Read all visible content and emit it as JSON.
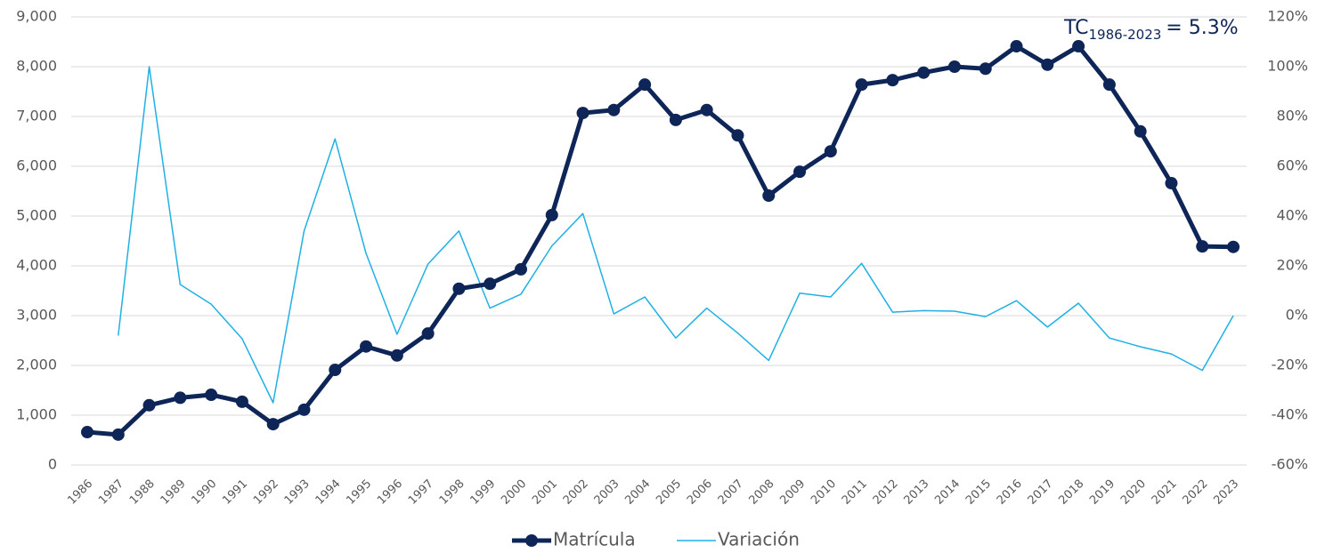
{
  "chart_data": {
    "type": "line",
    "categories": [
      "1986",
      "1987",
      "1988",
      "1989",
      "1990",
      "1991",
      "1992",
      "1993",
      "1994",
      "1995",
      "1996",
      "1997",
      "1998",
      "1999",
      "2000",
      "2001",
      "2002",
      "2003",
      "2004",
      "2005",
      "2006",
      "2007",
      "2008",
      "2009",
      "2010",
      "2011",
      "2012",
      "2013",
      "2014",
      "2015",
      "2016",
      "2017",
      "2018",
      "2019",
      "2020",
      "2021",
      "2022",
      "2023"
    ],
    "series": [
      {
        "name": "Matrícula",
        "color": "#0e2557",
        "axis": "y",
        "values": [
          660,
          610,
          1200,
          1350,
          1410,
          1270,
          820,
          1110,
          1910,
          2380,
          2200,
          2640,
          3540,
          3640,
          3930,
          5020,
          7070,
          7130,
          7640,
          6930,
          7130,
          6620,
          5410,
          5890,
          6300,
          7640,
          7730,
          7880,
          8000,
          7960,
          8410,
          8040,
          8410,
          7640,
          6700,
          5660,
          4390,
          4380
        ]
      },
      {
        "name": "Variación",
        "color": "#1fb0e6",
        "axis": "y2",
        "values": [
          null,
          -8,
          100,
          12.5,
          4.6,
          -9.3,
          -35,
          34,
          71,
          25,
          -7.5,
          20.7,
          34,
          3,
          8.6,
          28,
          41,
          0.7,
          7.5,
          -9,
          3,
          -7,
          -18,
          9,
          7.5,
          21,
          1.4,
          2,
          1.8,
          -0.4,
          6,
          -4.6,
          5,
          -9,
          -12.5,
          -15.4,
          -22,
          0
        ]
      }
    ],
    "ylim": [
      0,
      9000
    ],
    "yticks": [
      0,
      {
        "value": 1000,
        "label": "1,000"
      },
      {
        "value": 2000,
        "label": "2,000"
      },
      {
        "value": 3000,
        "label": "3,000"
      },
      {
        "value": 4000,
        "label": "4,000"
      },
      {
        "value": 5000,
        "label": "5,000"
      },
      {
        "value": 6000,
        "label": "6,000"
      },
      {
        "value": 7000,
        "label": "7,000"
      },
      {
        "value": 8000,
        "label": "8,000"
      },
      {
        "value": 9000,
        "label": "9,000"
      }
    ],
    "y2lim": [
      -60,
      120
    ],
    "y2ticks": [
      {
        "value": -60,
        "label": "-60%"
      },
      {
        "value": -40,
        "label": "-40%"
      },
      {
        "value": -20,
        "label": "-20%"
      },
      {
        "value": 0,
        "label": "0%"
      },
      {
        "value": 20,
        "label": "20%"
      },
      {
        "value": 40,
        "label": "40%"
      },
      {
        "value": 60,
        "label": "60%"
      },
      {
        "value": 80,
        "label": "80%"
      },
      {
        "value": 100,
        "label": "100%"
      },
      {
        "value": 120,
        "label": "120%"
      }
    ],
    "grid": true,
    "legend": "bottom",
    "annotation": {
      "prefix": "TC",
      "subscript": "1986-2023",
      "text": "= 5.3%"
    }
  }
}
